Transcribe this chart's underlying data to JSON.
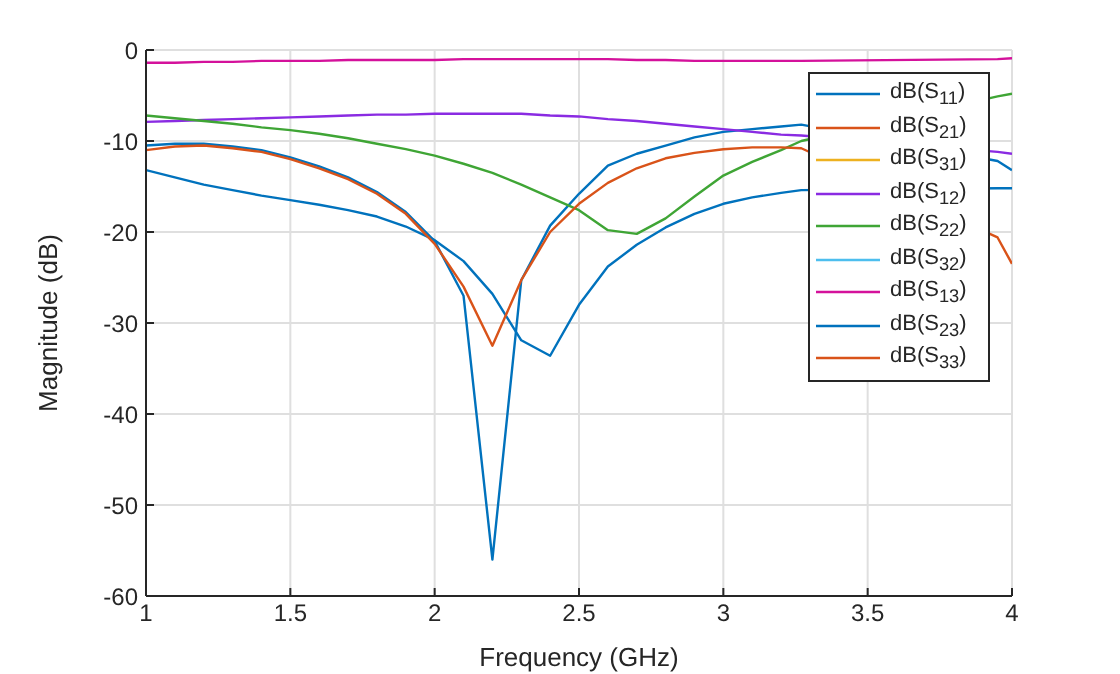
{
  "chart_data": {
    "type": "line",
    "xlabel": "Frequency (GHz)",
    "ylabel": "Magnitude (dB)",
    "x": [
      1,
      1.1,
      1.2,
      1.3,
      1.4,
      1.5,
      1.6,
      1.7,
      1.8,
      1.9,
      2,
      2.1,
      2.2,
      2.3,
      2.4,
      2.5,
      2.6,
      2.7,
      2.8,
      2.9,
      3,
      3.1,
      3.2,
      3.27,
      3.95,
      4
    ],
    "xlim": [
      1,
      4
    ],
    "xticks": [
      1,
      1.5,
      2,
      2.5,
      3,
      3.5,
      4
    ],
    "ylim": [
      -60,
      0
    ],
    "yticks": [
      -60,
      -50,
      -40,
      -30,
      -20,
      -10,
      0
    ],
    "grid": true,
    "legend": "top right",
    "marker": "none",
    "line_style": "solid",
    "series": [
      {
        "name": "dB(S$_{11}$)",
        "color": "#0072bd",
        "values": [
          -10.5,
          -10.3,
          -10.3,
          -10.6,
          -11.0,
          -11.8,
          -12.8,
          -14.0,
          -15.6,
          -17.8,
          -21,
          -27,
          -56,
          -25.3,
          -19.3,
          -15.8,
          -12.7,
          -11.4,
          -10.5,
          -9.6,
          -9.0,
          -8.7,
          -8.4,
          -8.2,
          -12.2,
          -13.2
        ]
      },
      {
        "name": "dB(S$_{21}$)",
        "color": "#d95319",
        "values": [
          null,
          null,
          null,
          null,
          null,
          null,
          null,
          null,
          null,
          null,
          null,
          null,
          null,
          null,
          null,
          null,
          null,
          null,
          null,
          null,
          null,
          null,
          null,
          null,
          null,
          null
        ]
      },
      {
        "name": "dB(S$_{31}$)",
        "color": "#edb120",
        "values": [
          null,
          null,
          null,
          null,
          null,
          null,
          null,
          null,
          null,
          null,
          null,
          null,
          null,
          null,
          null,
          null,
          null,
          null,
          null,
          null,
          null,
          null,
          null,
          null,
          null,
          null
        ]
      },
      {
        "name": "dB(S$_{12}$)",
        "color": "#8a2be2",
        "values": [
          -7.9,
          -7.8,
          -7.7,
          -7.6,
          -7.5,
          -7.4,
          -7.3,
          -7.2,
          -7.1,
          -7.1,
          -7.0,
          -7.0,
          -7.0,
          -7.0,
          -7.2,
          -7.3,
          -7.6,
          -7.8,
          -8.1,
          -8.4,
          -8.7,
          -9.0,
          -9.3,
          -9.4,
          -11.2,
          -11.4
        ]
      },
      {
        "name": "dB(S$_{22}$)",
        "color": "#3fa535",
        "values": [
          -7.2,
          -7.5,
          -7.8,
          -8.1,
          -8.5,
          -8.8,
          -9.2,
          -9.7,
          -10.3,
          -10.9,
          -11.6,
          -12.5,
          -13.5,
          -14.8,
          -16.2,
          -17.6,
          -19.8,
          -20.2,
          -18.5,
          -16.1,
          -13.8,
          -12.3,
          -11.0,
          -10.0,
          -5.1,
          -4.8
        ]
      },
      {
        "name": "dB(S$_{32}$)",
        "color": "#4dbeee",
        "values": [
          null,
          null,
          null,
          null,
          null,
          null,
          null,
          null,
          null,
          null,
          null,
          null,
          null,
          null,
          null,
          null,
          null,
          null,
          null,
          null,
          null,
          null,
          null,
          null,
          null,
          null
        ]
      },
      {
        "name": "dB(S$_{13}$)",
        "color": "#d4119b",
        "values": [
          -1.4,
          -1.4,
          -1.3,
          -1.3,
          -1.2,
          -1.2,
          -1.2,
          -1.1,
          -1.1,
          -1.1,
          -1.1,
          -1.0,
          -1.0,
          -1.0,
          -1.0,
          -1.0,
          -1.0,
          -1.1,
          -1.1,
          -1.2,
          -1.2,
          -1.2,
          -1.2,
          -1.2,
          -1.0,
          -0.9
        ]
      },
      {
        "name": "dB(S$_{23}$)",
        "color": "#0072bd",
        "values": [
          -13.2,
          -14.0,
          -14.8,
          -15.4,
          -16.0,
          -16.5,
          -17.0,
          -17.6,
          -18.3,
          -19.4,
          -20.9,
          -23.2,
          -26.8,
          -31.9,
          -33.6,
          -28,
          -23.8,
          -21.4,
          -19.5,
          -18,
          -16.9,
          -16.2,
          -15.7,
          -15.4,
          -15.2,
          -15.2
        ]
      },
      {
        "name": "dB(S$_{33}$)",
        "color": "#d95319",
        "values": [
          -11,
          -10.6,
          -10.5,
          -10.8,
          -11.2,
          -12.0,
          -13.0,
          -14.2,
          -15.8,
          -18.0,
          -21.3,
          -26,
          -32.5,
          -25.3,
          -20,
          -16.9,
          -14.6,
          -13.0,
          -11.9,
          -11.3,
          -10.9,
          -10.7,
          -10.7,
          -10.8,
          -20.6,
          -23.5
        ]
      }
    ]
  }
}
